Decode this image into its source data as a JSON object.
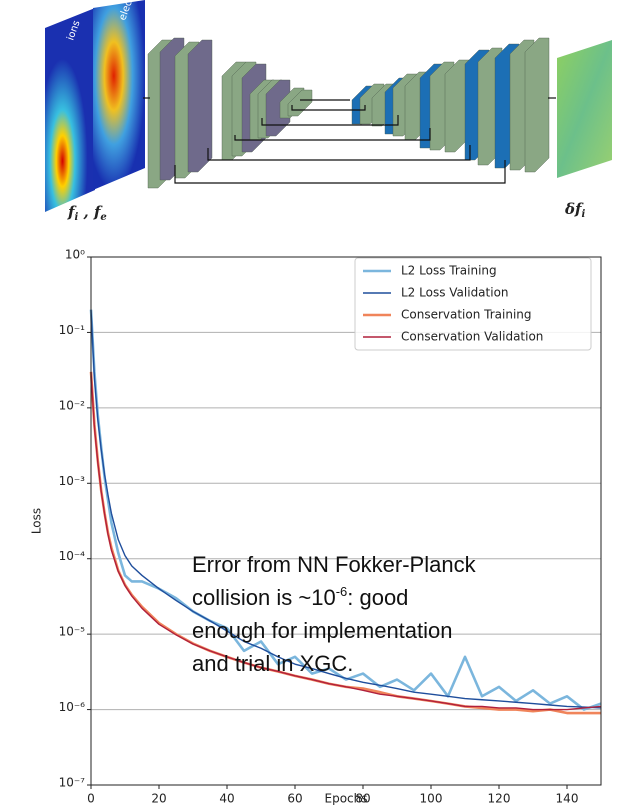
{
  "diagram": {
    "input_label": [
      "f",
      "i",
      " , ",
      "f",
      "e"
    ],
    "output_label": [
      "δf",
      "i"
    ],
    "image_labels": [
      "ions",
      "electrons"
    ]
  },
  "chart_data": {
    "type": "line",
    "xlabel": "Epochs",
    "ylabel": "Loss",
    "yscale": "log",
    "grid": true,
    "legend": "upper right",
    "xlim": [
      0,
      150
    ],
    "xticks": [
      0,
      20,
      40,
      60,
      80,
      100,
      120,
      140
    ],
    "ylim": [
      1e-07,
      1
    ],
    "yticks": [
      {
        "value": 1e-07,
        "label": "10⁻⁷"
      },
      {
        "value": 1e-06,
        "label": "10⁻⁶"
      },
      {
        "value": 1e-05,
        "label": "10⁻⁵"
      },
      {
        "value": 0.0001,
        "label": "10⁻⁴"
      },
      {
        "value": 0.001,
        "label": "10⁻³"
      },
      {
        "value": 0.01,
        "label": "10⁻²"
      },
      {
        "value": 0.1,
        "label": "10⁻¹"
      },
      {
        "value": 1,
        "label": "10⁰"
      }
    ],
    "annotation": [
      "Error from NN Fokker-Planck",
      "collision is ~10",
      "-6",
      ": good",
      "enough for implementation",
      "and trial in XGC."
    ],
    "x": [
      0,
      1,
      2,
      3,
      4,
      5,
      6,
      8,
      10,
      12,
      15,
      20,
      25,
      30,
      35,
      40,
      45,
      50,
      55,
      60,
      65,
      70,
      75,
      80,
      85,
      90,
      95,
      100,
      105,
      110,
      115,
      120,
      125,
      130,
      135,
      140,
      145,
      150
    ],
    "series": [
      {
        "name": "L2 Loss Training",
        "color": "#7bb6dd",
        "width": 2.6,
        "values": [
          0.2,
          0.03,
          0.008,
          0.003,
          0.0012,
          0.0006,
          0.0003,
          0.00012,
          6e-05,
          5e-05,
          5e-05,
          4e-05,
          3e-05,
          2e-05,
          1.5e-05,
          1.2e-05,
          6e-06,
          8e-06,
          4e-06,
          5e-06,
          3e-06,
          3.5e-06,
          2.5e-06,
          3e-06,
          2e-06,
          2.5e-06,
          1.8e-06,
          3e-06,
          1.5e-06,
          5e-06,
          1.5e-06,
          2e-06,
          1.3e-06,
          1.8e-06,
          1.2e-06,
          1.5e-06,
          1e-06,
          1.2e-06
        ]
      },
      {
        "name": "L2 Loss Validation",
        "color": "#1f4e9c",
        "width": 1.4,
        "values": [
          0.2,
          0.025,
          0.007,
          0.0028,
          0.0013,
          0.0007,
          0.0004,
          0.00018,
          0.00011,
          8e-05,
          6e-05,
          4e-05,
          2.8e-05,
          2e-05,
          1.5e-05,
          1.1e-05,
          8e-06,
          6.5e-06,
          5e-06,
          4e-06,
          3.5e-06,
          3e-06,
          2.6e-06,
          2.3e-06,
          2.1e-06,
          1.9e-06,
          1.7e-06,
          1.6e-06,
          1.5e-06,
          1.4e-06,
          1.35e-06,
          1.3e-06,
          1.25e-06,
          1.2e-06,
          1.15e-06,
          1.1e-06,
          1.08e-06,
          1.05e-06
        ]
      },
      {
        "name": "Conservation Training",
        "color": "#f0845a",
        "width": 2.6,
        "values": [
          0.03,
          0.006,
          0.002,
          0.0008,
          0.0004,
          0.00022,
          0.00014,
          7e-05,
          4.5e-05,
          3.3e-05,
          2.3e-05,
          1.4e-05,
          1e-05,
          7.5e-06,
          6e-06,
          5e-06,
          4.2e-06,
          3.6e-06,
          3.2e-06,
          2.8e-06,
          2.5e-06,
          2.2e-06,
          2e-06,
          1.9e-06,
          1.7e-06,
          1.5e-06,
          1.4e-06,
          1.3e-06,
          1.2e-06,
          1.1e-06,
          1.05e-06,
          1e-06,
          1e-06,
          9.5e-07,
          1e-06,
          9e-07,
          9e-07,
          9e-07
        ]
      },
      {
        "name": "Conservation Validation",
        "color": "#b0203c",
        "width": 1.4,
        "values": [
          0.03,
          0.0055,
          0.0019,
          0.00078,
          0.00039,
          0.00021,
          0.00013,
          6.8e-05,
          4.4e-05,
          3.2e-05,
          2.2e-05,
          1.35e-05,
          9.8e-06,
          7.4e-06,
          6e-06,
          5e-06,
          4.2e-06,
          3.6e-06,
          3.2e-06,
          2.8e-06,
          2.5e-06,
          2.2e-06,
          2e-06,
          1.8e-06,
          1.6e-06,
          1.5e-06,
          1.4e-06,
          1.3e-06,
          1.2e-06,
          1.1e-06,
          1.1e-06,
          1.05e-06,
          1.05e-06,
          1e-06,
          1e-06,
          1e-06,
          1.05e-06,
          1.1e-06
        ]
      }
    ]
  }
}
